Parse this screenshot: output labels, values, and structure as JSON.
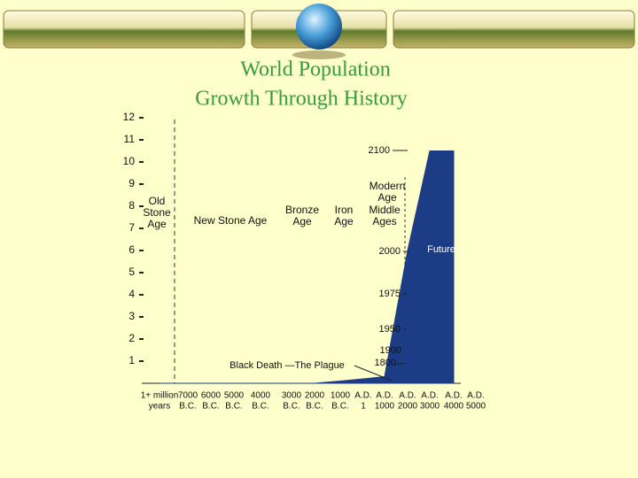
{
  "chart_data": {
    "type": "area",
    "title": [
      "World Population",
      "Growth Through History"
    ],
    "categories": [
      [
        "1+ million",
        "years"
      ],
      [
        "7000",
        "B.C."
      ],
      [
        "6000",
        "B.C."
      ],
      [
        "5000",
        "B.C."
      ],
      [
        "4000",
        "B.C."
      ],
      [
        "3000",
        "B.C."
      ],
      [
        "2000",
        "B.C."
      ],
      [
        "1000",
        "B.C."
      ],
      [
        "A.D.",
        "1"
      ],
      [
        "A.D.",
        "1000"
      ],
      [
        "A.D.",
        "2000"
      ],
      [
        "A.D.",
        "3000"
      ],
      [
        "A.D.",
        "4000"
      ],
      [
        "A.D.",
        "5000"
      ]
    ],
    "values": [
      0,
      0,
      0,
      0,
      0,
      0,
      0,
      0.1,
      0.2,
      0.3,
      6,
      10.5,
      10.5,
      null
    ],
    "color": "#1c3c86",
    "ylim": [
      0,
      12
    ],
    "yticks": [
      1,
      2,
      3,
      4,
      5,
      6,
      7,
      8,
      9,
      10,
      11,
      12
    ],
    "eras": [
      [
        "Old",
        "Stone",
        "Age"
      ],
      [
        "New Stone Age"
      ],
      [
        "Bronze",
        "Age"
      ],
      [
        "Iron",
        "Age"
      ],
      [
        "Modern",
        "Age"
      ],
      [
        "Middle",
        "Ages"
      ]
    ],
    "annotations": [
      "2100",
      "2000",
      "1975",
      "1950",
      "1900",
      "1800",
      "Black Death —The Plague",
      "Future"
    ]
  }
}
